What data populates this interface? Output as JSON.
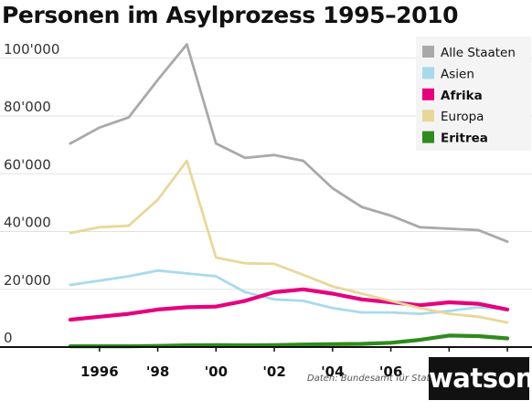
{
  "chart_data": {
    "type": "line",
    "title": "Personen im Asylprozess 1995–2010",
    "x": [
      1995,
      1996,
      1997,
      1998,
      1999,
      2000,
      2001,
      2002,
      2003,
      2004,
      2005,
      2006,
      2007,
      2008,
      2009,
      2010
    ],
    "x_tick_values": [
      1996,
      1998,
      2000,
      2002,
      2004,
      2006,
      2008,
      2010
    ],
    "x_tick_labels": [
      "1996",
      "'98",
      "'00",
      "'02",
      "'04",
      "'06",
      "'08",
      "2010"
    ],
    "y_tick_values": [
      0,
      20000,
      40000,
      60000,
      80000,
      100000
    ],
    "y_tick_labels": [
      "0",
      "20'000",
      "40'000",
      "60'000",
      "80'000",
      "100'000"
    ],
    "xlim": [
      1994.5,
      2010.5
    ],
    "ylim": [
      0,
      105000
    ],
    "grid": "horizontal",
    "legend_position": "top-right",
    "series": [
      {
        "name": "Alle Staaten",
        "color": "#a9a9a9",
        "bold": false,
        "values": [
          70500,
          76000,
          79500,
          92500,
          104800,
          70500,
          65500,
          66500,
          64500,
          55000,
          48500,
          45500,
          41500,
          41000,
          40500,
          36500
        ]
      },
      {
        "name": "Asien",
        "color": "#a8daec",
        "bold": false,
        "values": [
          21500,
          23000,
          24500,
          26500,
          25500,
          24500,
          19000,
          16500,
          16000,
          13500,
          12000,
          12000,
          11500,
          12500,
          13800,
          13000
        ]
      },
      {
        "name": "Afrika",
        "color": "#e6007e",
        "bold": true,
        "values": [
          9500,
          10500,
          11500,
          13000,
          13800,
          14000,
          16000,
          19000,
          20000,
          18500,
          16500,
          15500,
          14500,
          15500,
          15000,
          13000
        ]
      },
      {
        "name": "Europa",
        "color": "#e8d898",
        "bold": false,
        "values": [
          39500,
          41500,
          42000,
          51000,
          64500,
          31000,
          29000,
          28800,
          25000,
          21000,
          18500,
          16000,
          13500,
          11500,
          10500,
          8500
        ]
      },
      {
        "name": "Eritrea",
        "color": "#2e8b1e",
        "bold": true,
        "values": [
          300,
          300,
          300,
          400,
          600,
          700,
          600,
          700,
          900,
          1000,
          1100,
          1500,
          2500,
          4000,
          3800,
          3000
        ]
      }
    ],
    "source": "Daten: Bundesamt für Statistik"
  },
  "brand": "watson"
}
